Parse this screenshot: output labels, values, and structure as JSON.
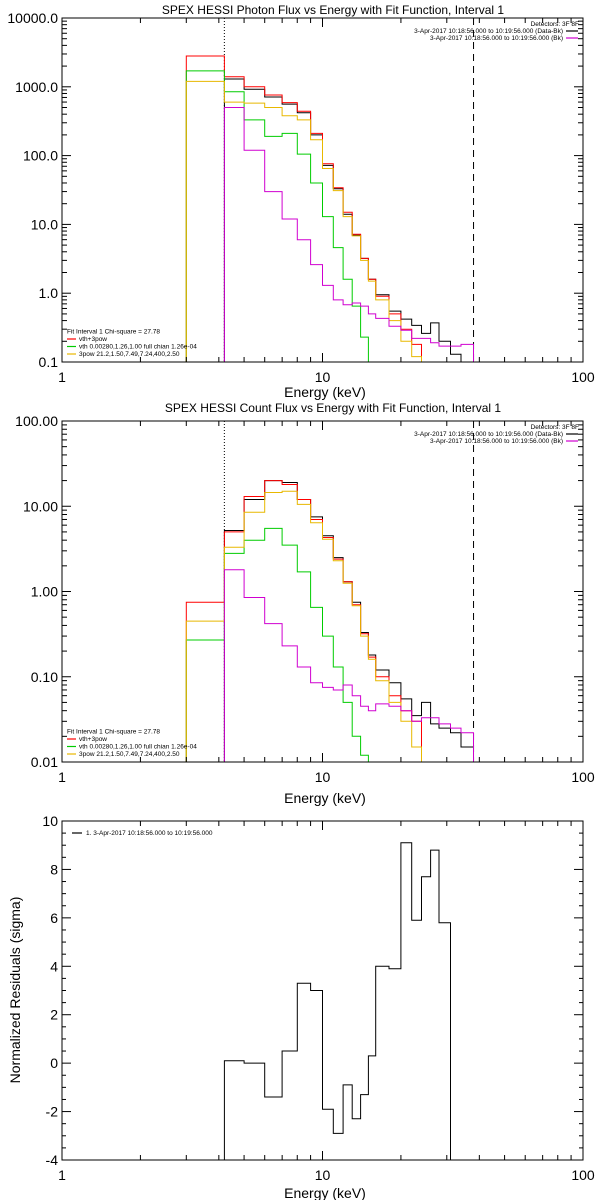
{
  "chart_data": [
    {
      "type": "line",
      "title": "SPEX HESSI Photon Flux vs Energy with Fit Function, Interval 1",
      "xlabel": "Energy (keV)",
      "ylabel": "",
      "xscale": "log",
      "yscale": "log",
      "xlim": [
        1,
        100
      ],
      "ylim": [
        0.1,
        10000
      ],
      "xticks": [
        {
          "v": 1,
          "label": "1"
        },
        {
          "v": 10,
          "label": "10"
        },
        {
          "v": 100,
          "label": "100"
        }
      ],
      "yticks": [
        {
          "v": 0.1,
          "label": "0.1"
        },
        {
          "v": 1,
          "label": "1.0"
        },
        {
          "v": 10,
          "label": "10.0"
        },
        {
          "v": 100,
          "label": "100.0"
        },
        {
          "v": 1000,
          "label": "1000.0"
        },
        {
          "v": 10000,
          "label": "10000.0"
        }
      ],
      "vlines": [
        {
          "x": 4.2,
          "style": "dotted"
        },
        {
          "x": 38,
          "style": "dashed"
        }
      ],
      "legend_topright": [
        {
          "text": "Detectors: 3F 8F",
          "color": ""
        },
        {
          "text": "3-Apr-2017 10:18:56.000 to 10:19:56.000 (Data-Bk)",
          "color": "#000000"
        },
        {
          "text": "3-Apr-2017 10:18:56.000 to 10:19:56.000 (Bk)",
          "color": "#d000d0"
        }
      ],
      "legend_bottomleft": [
        {
          "text": "Fit Interval 1   Chi-square = 27.78",
          "color": ""
        },
        {
          "text": "vth+3pow",
          "color": "#ff0000"
        },
        {
          "text": "vth 0.00280,1.26,1.00  full chian 1.26e-04",
          "color": "#00cc00"
        },
        {
          "text": "3pow 21.2,1.50,7.49,7.24,400,2.50",
          "color": "#e8b800"
        }
      ],
      "series": [
        {
          "name": "Data-Bk",
          "color": "#000000",
          "edges": [
            4.2,
            5,
            6,
            7,
            8,
            9,
            10,
            11,
            12,
            13,
            14,
            15,
            16,
            18,
            20,
            22,
            24,
            26,
            28,
            31,
            34,
            38
          ],
          "values": [
            1300,
            920,
            710,
            560,
            420,
            200,
            72,
            33,
            14,
            7,
            3.2,
            1.6,
            0.95,
            0.55,
            0.42,
            0.34,
            0.26,
            0.37,
            0.2,
            0.13,
            0.1
          ]
        },
        {
          "name": "vth+3pow",
          "color": "#ff0000",
          "edges": [
            3,
            4.2,
            5,
            6,
            7,
            8,
            9,
            10,
            11,
            12,
            13,
            14,
            15,
            16,
            18,
            20,
            22,
            24,
            26,
            28,
            31,
            34,
            38
          ],
          "values": [
            2800,
            1400,
            1000,
            760,
            590,
            440,
            210,
            76,
            34,
            15,
            7.2,
            3.2,
            1.6,
            0.9,
            0.5,
            0.3,
            0.18,
            0.1,
            0.1,
            0.1,
            0.1,
            0.1
          ]
        },
        {
          "name": "vth",
          "color": "#00cc00",
          "edges": [
            3,
            4.2,
            5,
            6,
            7,
            8,
            9,
            10,
            11,
            12,
            13,
            14,
            15,
            16,
            18,
            20,
            22,
            24,
            26,
            28,
            31,
            34,
            38
          ],
          "values": [
            1700,
            850,
            330,
            190,
            210,
            105,
            40,
            13,
            4.6,
            1.6,
            0.65,
            0.23,
            0.1,
            0.1,
            0.1,
            0.1,
            0.1,
            0.1,
            0.1,
            0.1,
            0.1,
            0.1
          ]
        },
        {
          "name": "3pow",
          "color": "#e8b800",
          "edges": [
            3,
            4.2,
            5,
            6,
            7,
            8,
            9,
            10,
            11,
            12,
            13,
            14,
            15,
            16,
            18,
            20,
            22,
            24,
            26,
            28,
            31,
            34,
            38
          ],
          "values": [
            1200,
            600,
            580,
            500,
            380,
            330,
            170,
            65,
            31,
            13,
            6.8,
            3,
            1.5,
            0.8,
            0.4,
            0.2,
            0.12,
            0.1,
            0.1,
            0.1,
            0.1,
            0.1
          ]
        },
        {
          "name": "Bk",
          "color": "#d000d0",
          "edges": [
            4.2,
            5,
            6,
            7,
            8,
            9,
            10,
            11,
            12,
            13,
            14,
            15,
            16,
            18,
            20,
            22,
            24,
            26,
            28,
            31,
            34,
            38
          ],
          "values": [
            500,
            120,
            30,
            12,
            6,
            2.6,
            1.3,
            0.8,
            0.68,
            0.72,
            0.65,
            0.5,
            0.43,
            0.33,
            0.29,
            0.22,
            0.22,
            0.19,
            0.17,
            0.17,
            0.18
          ]
        }
      ]
    },
    {
      "type": "line",
      "title": "SPEX HESSI Count Flux vs Energy with Fit Function, Interval 1",
      "xlabel": "Energy (keV)",
      "ylabel": "",
      "xscale": "log",
      "yscale": "log",
      "xlim": [
        1,
        100
      ],
      "ylim": [
        0.01,
        100
      ],
      "xticks": [
        {
          "v": 1,
          "label": "1"
        },
        {
          "v": 10,
          "label": "10"
        },
        {
          "v": 100,
          "label": "100"
        }
      ],
      "yticks": [
        {
          "v": 0.01,
          "label": "0.01"
        },
        {
          "v": 0.1,
          "label": "0.10"
        },
        {
          "v": 1,
          "label": "1.00"
        },
        {
          "v": 10,
          "label": "10.00"
        },
        {
          "v": 100,
          "label": "100.00"
        }
      ],
      "vlines": [
        {
          "x": 4.2,
          "style": "dotted"
        },
        {
          "x": 38,
          "style": "dashed"
        }
      ],
      "legend_topright": [
        {
          "text": "Detectors: 3F 8F",
          "color": ""
        },
        {
          "text": "3-Apr-2017 10:18:56.000 to 10:19:56.000 (Data-Bk)",
          "color": "#000000"
        },
        {
          "text": "3-Apr-2017 10:18:56.000 to 10:19:56.000 (Bk)",
          "color": "#d000d0"
        }
      ],
      "legend_bottomleft": [
        {
          "text": "Fit Interval 1   Chi-square = 27.78",
          "color": ""
        },
        {
          "text": "vth+3pow",
          "color": "#ff0000"
        },
        {
          "text": "vth 0.00280,1.26,1.00  full chian 1.26e-04",
          "color": "#00cc00"
        },
        {
          "text": "3pow 21.2,1.50,7.49,7.24,400,2.50",
          "color": "#e8b800"
        }
      ],
      "series": [
        {
          "name": "Data-Bk",
          "color": "#000000",
          "edges": [
            4.2,
            5,
            6,
            7,
            8,
            9,
            10,
            11,
            12,
            13,
            14,
            15,
            16,
            18,
            20,
            22,
            24,
            26,
            28,
            31,
            34,
            38
          ],
          "values": [
            5.2,
            12,
            20,
            19,
            12,
            7.5,
            4.5,
            2.5,
            1.3,
            0.75,
            0.33,
            0.18,
            0.12,
            0.085,
            0.055,
            0.035,
            0.05,
            0.028,
            0.025,
            0.022,
            0.015
          ]
        },
        {
          "name": "vth+3pow",
          "color": "#ff0000",
          "edges": [
            3,
            4.2,
            5,
            6,
            7,
            8,
            9,
            10,
            11,
            12,
            13,
            14,
            15,
            16,
            18,
            20,
            22,
            24,
            26,
            28,
            31,
            34,
            38
          ],
          "values": [
            0.75,
            5,
            13,
            20,
            18,
            12,
            7,
            4.3,
            2.4,
            1.3,
            0.7,
            0.32,
            0.17,
            0.1,
            0.06,
            0.04,
            0.03,
            0.01,
            0.01,
            0.01,
            0.01,
            0.01
          ]
        },
        {
          "name": "vth",
          "color": "#00cc00",
          "edges": [
            3,
            4.2,
            5,
            6,
            7,
            8,
            9,
            10,
            11,
            12,
            13,
            14,
            15,
            16,
            18,
            20,
            22,
            24,
            26,
            28,
            31,
            34,
            38
          ],
          "values": [
            0.27,
            2.8,
            4,
            5.5,
            3.5,
            1.7,
            0.65,
            0.3,
            0.13,
            0.05,
            0.02,
            0.012,
            0.01,
            0.01,
            0.01,
            0.01,
            0.01,
            0.01,
            0.01,
            0.01,
            0.01,
            0.01
          ]
        },
        {
          "name": "3pow",
          "color": "#e8b800",
          "edges": [
            3,
            4.2,
            5,
            6,
            7,
            8,
            9,
            10,
            11,
            12,
            13,
            14,
            15,
            16,
            18,
            20,
            22,
            24,
            26,
            28,
            31,
            34,
            38
          ],
          "values": [
            0.45,
            3.3,
            8.5,
            14.5,
            15,
            10.5,
            6.4,
            4.1,
            2.3,
            1.25,
            0.68,
            0.3,
            0.16,
            0.09,
            0.05,
            0.03,
            0.015,
            0.01,
            0.01,
            0.01,
            0.01,
            0.01
          ]
        },
        {
          "name": "Bk",
          "color": "#d000d0",
          "edges": [
            4.2,
            5,
            6,
            7,
            8,
            9,
            10,
            11,
            12,
            13,
            14,
            15,
            16,
            18,
            20,
            22,
            24,
            26,
            28,
            31,
            34,
            38
          ],
          "values": [
            1.8,
            0.85,
            0.42,
            0.23,
            0.13,
            0.085,
            0.075,
            0.07,
            0.08,
            0.06,
            0.045,
            0.04,
            0.048,
            0.045,
            0.04,
            0.03,
            0.033,
            0.033,
            0.028,
            0.025,
            0.022
          ]
        }
      ]
    },
    {
      "type": "line",
      "title": "",
      "xlabel": "Energy (keV)",
      "ylabel": "Normalized Residuals (sigma)",
      "xscale": "log",
      "yscale": "linear",
      "xlim": [
        1,
        100
      ],
      "ylim": [
        -4,
        10
      ],
      "xticks": [
        {
          "v": 1,
          "label": "1"
        },
        {
          "v": 10,
          "label": "10"
        },
        {
          "v": 100,
          "label": "100"
        }
      ],
      "yticks": [
        {
          "v": -4,
          "label": "-4"
        },
        {
          "v": -2,
          "label": "-2"
        },
        {
          "v": 0,
          "label": "0"
        },
        {
          "v": 2,
          "label": "2"
        },
        {
          "v": 4,
          "label": "4"
        },
        {
          "v": 6,
          "label": "6"
        },
        {
          "v": 8,
          "label": "8"
        },
        {
          "v": 10,
          "label": "10"
        }
      ],
      "legend_topleft": [
        {
          "text": "1.  3-Apr-2017 10:18:56.000 to 10:19:56.000",
          "color": "#000000"
        }
      ],
      "series": [
        {
          "name": "1.  3-Apr-2017 10:18:56.000 to 10:19:56.000",
          "color": "#000000",
          "edges": [
            4.2,
            5,
            6,
            7,
            8,
            9,
            10,
            11,
            12,
            13,
            14,
            15,
            16,
            18,
            20,
            22,
            24,
            26,
            28,
            31,
            34,
            38
          ],
          "values": [
            0.1,
            0,
            -1.4,
            0.5,
            3.3,
            3,
            -1.9,
            -2.9,
            -0.9,
            -2.3,
            -1.3,
            0.3,
            4.0,
            3.9,
            9.1,
            5.9,
            7.7,
            8.8,
            5.8,
            -4,
            -4
          ]
        }
      ]
    }
  ]
}
